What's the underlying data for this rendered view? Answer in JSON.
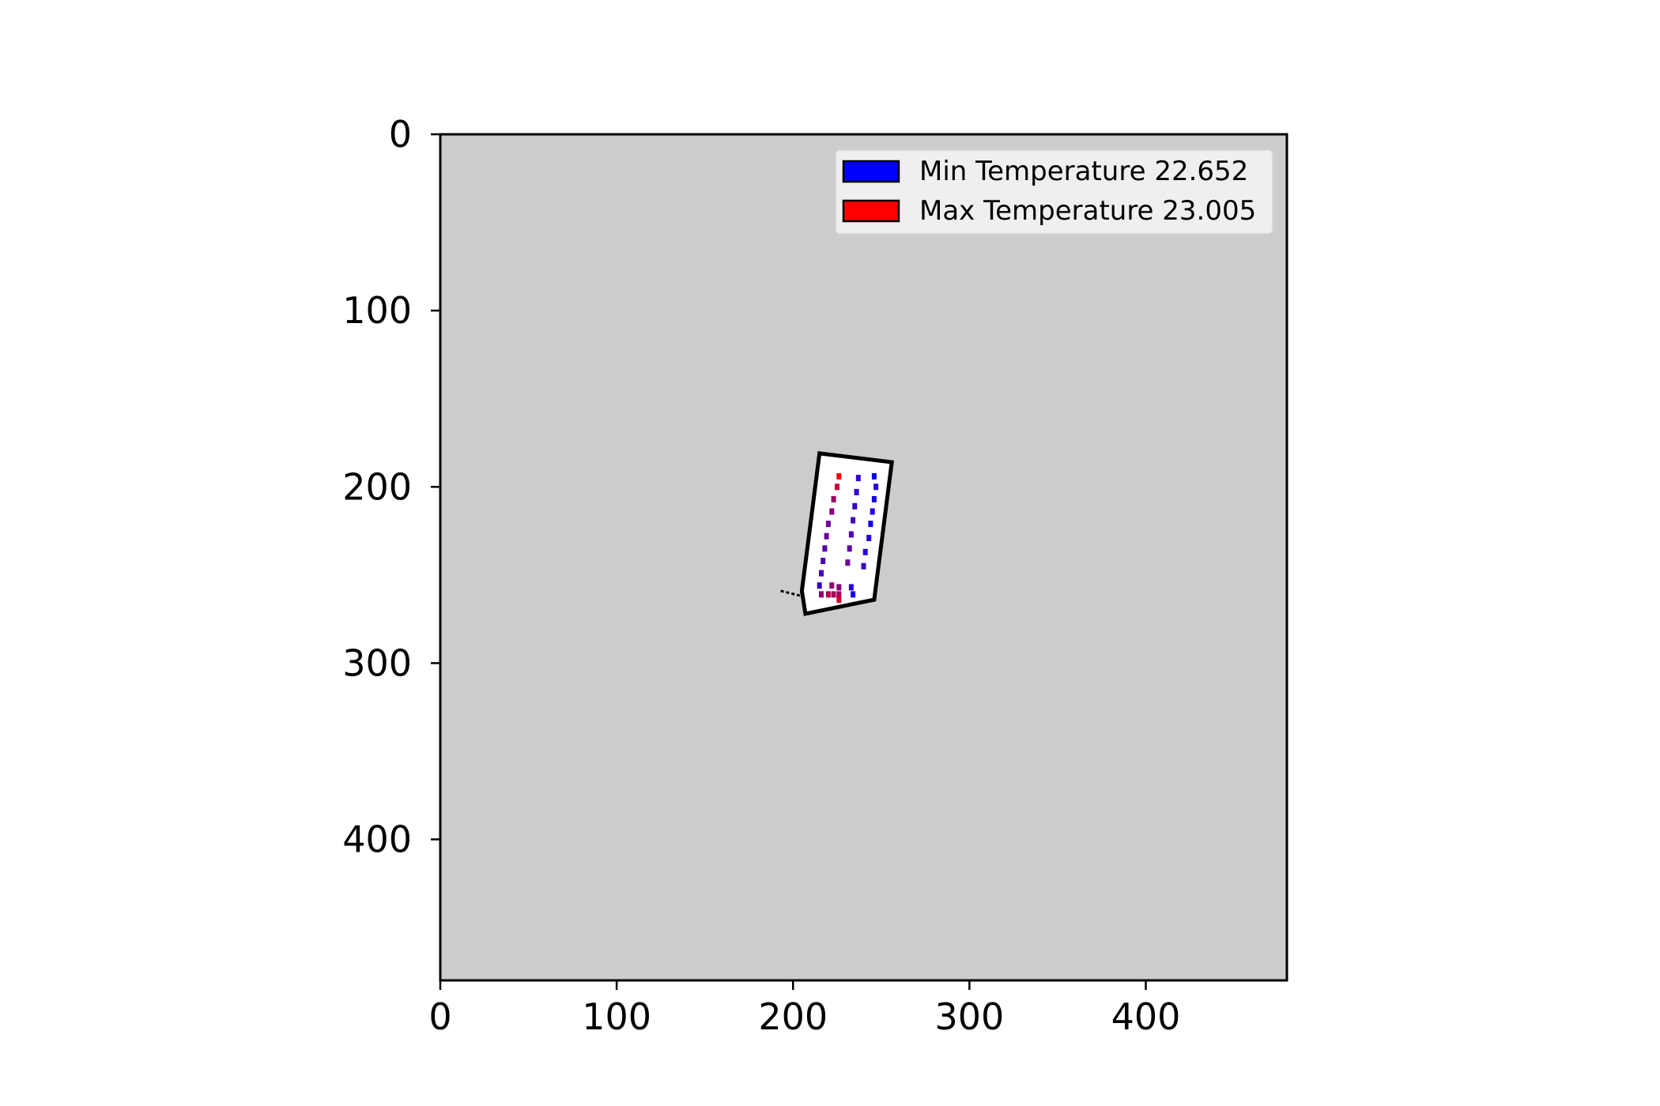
{
  "chart_data": {
    "type": "heatmap",
    "title": "",
    "xlabel": "",
    "ylabel": "",
    "xlim": [
      0,
      480
    ],
    "ylim": [
      480,
      0
    ],
    "x_ticks": [
      0,
      100,
      200,
      300,
      400
    ],
    "y_ticks": [
      0,
      100,
      200,
      300,
      400
    ],
    "grid": false,
    "background_color": "#cccccc",
    "map": {
      "outline": [
        [
          215,
          181
        ],
        [
          256,
          186
        ],
        [
          246,
          264
        ],
        [
          207,
          272
        ],
        [
          205,
          259
        ],
        [
          210,
          220
        ]
      ],
      "stub": [
        [
          193,
          259
        ],
        [
          205,
          262
        ]
      ],
      "fill_color": "#ffffff",
      "edge_color": "#000000"
    },
    "legend": {
      "placement": "top-right",
      "entries": [
        {
          "label": "Min Temperature 22.652",
          "color": "#0000ff"
        },
        {
          "label": "Max Temperature 23.005",
          "color": "#ff0000"
        }
      ]
    },
    "color_scale": {
      "low_color": "#0000ff",
      "high_color": "#ff0000",
      "min": 22.652,
      "max": 23.005
    },
    "points": [
      {
        "x": 226,
        "y": 194,
        "t": 23.005
      },
      {
        "x": 225,
        "y": 200,
        "t": 22.93
      },
      {
        "x": 223,
        "y": 207,
        "t": 22.87
      },
      {
        "x": 222,
        "y": 214,
        "t": 22.84
      },
      {
        "x": 220,
        "y": 221,
        "t": 22.8
      },
      {
        "x": 219,
        "y": 228,
        "t": 22.79
      },
      {
        "x": 218,
        "y": 235,
        "t": 22.77
      },
      {
        "x": 217,
        "y": 242,
        "t": 22.76
      },
      {
        "x": 216,
        "y": 249,
        "t": 22.74
      },
      {
        "x": 215,
        "y": 256,
        "t": 22.73
      },
      {
        "x": 237,
        "y": 195,
        "t": 22.72
      },
      {
        "x": 236,
        "y": 203,
        "t": 22.72
      },
      {
        "x": 235,
        "y": 211,
        "t": 22.73
      },
      {
        "x": 234,
        "y": 219,
        "t": 22.74
      },
      {
        "x": 233,
        "y": 227,
        "t": 22.76
      },
      {
        "x": 232,
        "y": 235,
        "t": 22.78
      },
      {
        "x": 231,
        "y": 243,
        "t": 22.8
      },
      {
        "x": 246,
        "y": 194,
        "t": 22.66
      },
      {
        "x": 247,
        "y": 200,
        "t": 22.7
      },
      {
        "x": 246,
        "y": 207,
        "t": 22.68
      },
      {
        "x": 245,
        "y": 214,
        "t": 22.69
      },
      {
        "x": 244,
        "y": 221,
        "t": 22.67
      },
      {
        "x": 243,
        "y": 229,
        "t": 22.7
      },
      {
        "x": 241,
        "y": 237,
        "t": 22.71
      },
      {
        "x": 240,
        "y": 245,
        "t": 22.73
      },
      {
        "x": 222,
        "y": 256,
        "t": 22.86
      },
      {
        "x": 226,
        "y": 257,
        "t": 22.84
      },
      {
        "x": 216,
        "y": 261,
        "t": 22.85
      },
      {
        "x": 220,
        "y": 261,
        "t": 22.9
      },
      {
        "x": 223,
        "y": 261,
        "t": 22.88
      },
      {
        "x": 226,
        "y": 261,
        "t": 22.87
      },
      {
        "x": 226,
        "y": 264,
        "t": 22.95
      },
      {
        "x": 233,
        "y": 257,
        "t": 22.7
      },
      {
        "x": 234,
        "y": 261,
        "t": 22.68
      }
    ]
  }
}
